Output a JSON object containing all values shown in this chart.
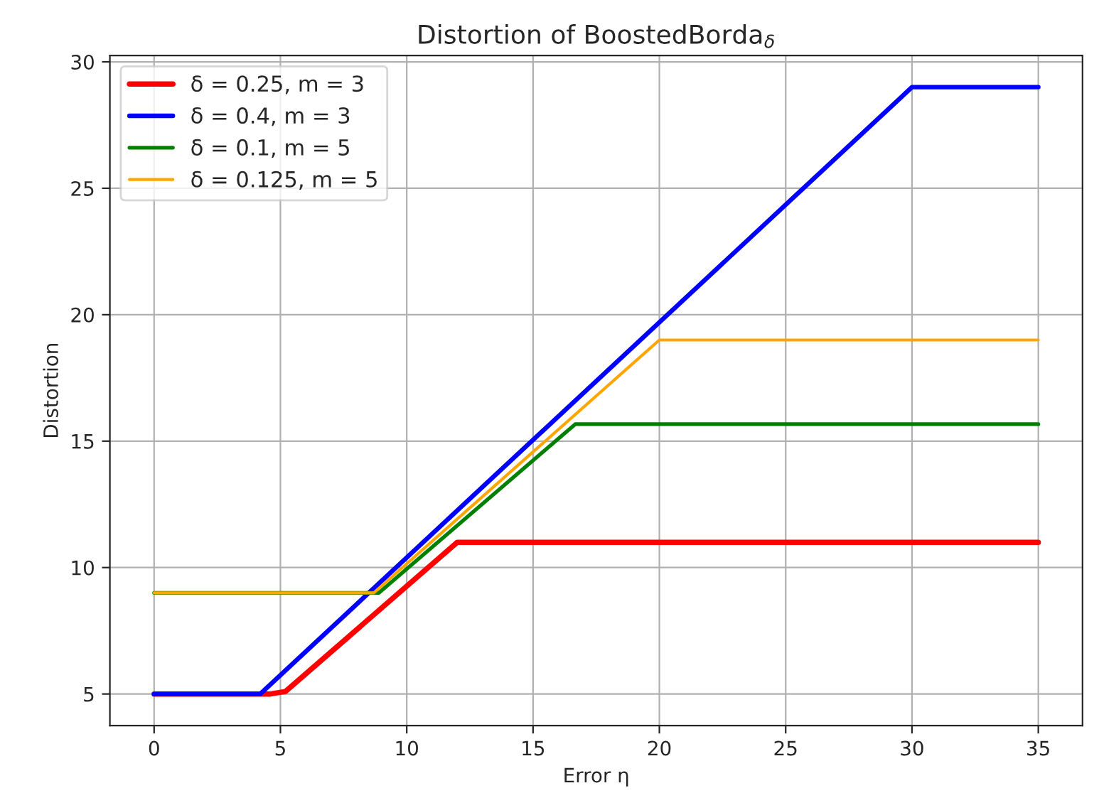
{
  "chart_data": {
    "type": "line",
    "title": "Distortion of BoostedBorda$_{δ}$",
    "xlabel": "Error η",
    "ylabel": "Distortion",
    "xlim": [
      -1.75,
      36.75
    ],
    "ylim": [
      3.75,
      30.25
    ],
    "xticks": [
      0,
      5,
      10,
      15,
      20,
      25,
      30,
      35
    ],
    "yticks": [
      5,
      10,
      15,
      20,
      25,
      30
    ],
    "grid": true,
    "legend": "top left",
    "line_style": "solid",
    "marker": "none",
    "series": [
      {
        "name": "δ = 0.25, m = 3",
        "color": "#ff0000",
        "x": [
          0,
          4.6,
          5.2,
          12,
          35
        ],
        "values": [
          5,
          5,
          5.1,
          11,
          11
        ]
      },
      {
        "name": "δ = 0.4, m = 3",
        "color": "#0000ff",
        "x": [
          0,
          4.2,
          30,
          35
        ],
        "values": [
          5,
          5,
          29,
          29
        ]
      },
      {
        "name": "δ = 0.1, m = 5",
        "color": "#008000",
        "x": [
          0,
          8.9,
          16.67,
          35
        ],
        "values": [
          9,
          9,
          15.67,
          15.67
        ]
      },
      {
        "name": "δ = 0.125, m = 5",
        "color": "#ffa500",
        "x": [
          0,
          8.7,
          20,
          35
        ],
        "values": [
          9,
          9,
          19,
          19
        ]
      }
    ]
  }
}
